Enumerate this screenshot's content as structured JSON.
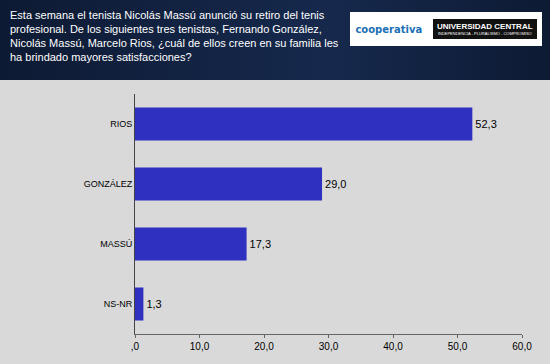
{
  "chart_data": {
    "type": "bar",
    "title": "Esta semana el tenista Nicolás Massú anunció su retiro del tenis profesional. De los siguientes tres tenistas, Fernando González, Nicolás Massú, Marcelo Rios, ¿cuál de ellos creen en su familia les ha brindado mayores satisfacciones?",
    "orientation": "horizontal",
    "categories": [
      "RIOS",
      "GONZÁLEZ",
      "MASSÚ",
      "NS-NR"
    ],
    "values": [
      52.3,
      29.0,
      17.3,
      1.3
    ],
    "value_labels": [
      "52,3",
      "29,0",
      "17,3",
      "1,3"
    ],
    "color": "#3030c0",
    "xlim": [
      0,
      60
    ],
    "xticks": [
      {
        "value": 0,
        "label": ",0"
      },
      {
        "value": 10,
        "label": "10,0"
      },
      {
        "value": 20,
        "label": "20,0"
      },
      {
        "value": 30,
        "label": "30,0"
      },
      {
        "value": 40,
        "label": "40,0"
      },
      {
        "value": 50,
        "label": "50,0"
      },
      {
        "value": 60,
        "label": "60,0"
      }
    ],
    "grid": false,
    "data_labels": true
  },
  "logos": [
    "cooperativa",
    "UNIVERSIDAD CENTRAL",
    "INDEPENDENCIA - PLURALISMO - COMPROMISO"
  ]
}
